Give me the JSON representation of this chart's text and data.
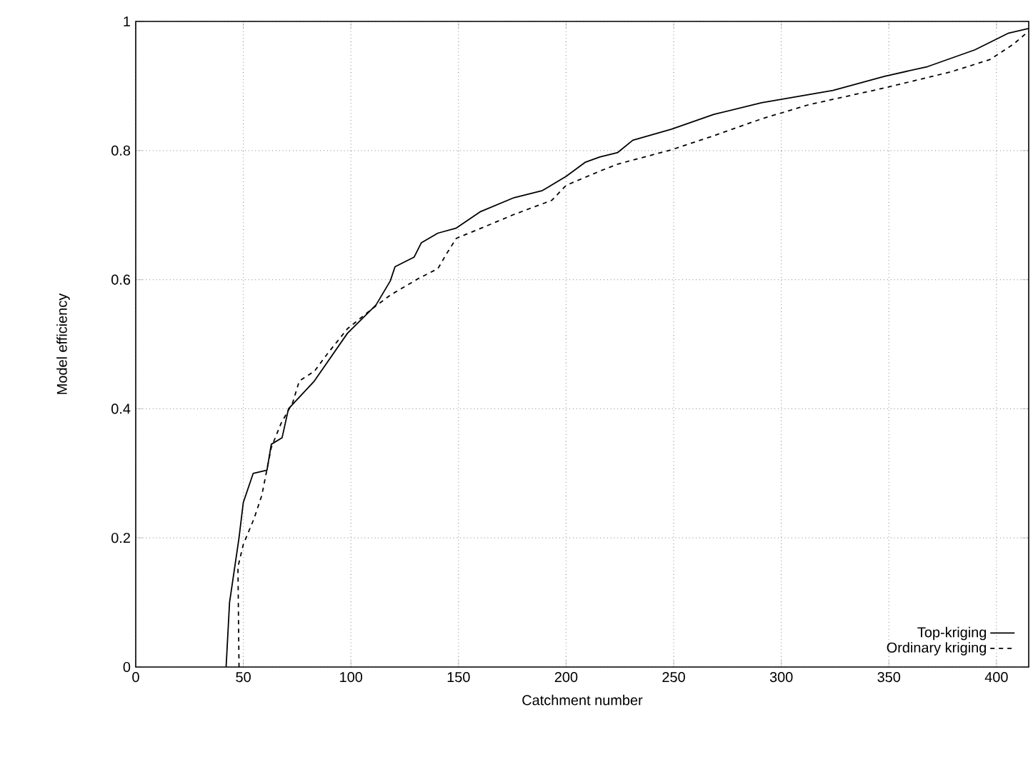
{
  "chart_data": {
    "type": "line",
    "xlabel": "Catchment number",
    "ylabel": "Model efficiency",
    "xlim": [
      0,
      415
    ],
    "ylim": [
      0,
      1
    ],
    "xticks": [
      0,
      50,
      100,
      150,
      200,
      250,
      300,
      350,
      400
    ],
    "yticks": [
      0,
      0.2,
      0.4,
      0.6,
      0.8,
      1
    ],
    "grid": true,
    "legend": "bottom right",
    "series": [
      {
        "name": "Top-kriging",
        "color": "#000000",
        "line_style": "solid",
        "x": [
          42,
          43.6,
          48,
          50,
          54.6,
          61,
          63,
          68,
          71,
          83,
          98.4,
          111.7,
          118.3,
          120.5,
          129.4,
          132.7,
          140.4,
          149,
          160,
          175.8,
          189,
          200,
          209,
          215.6,
          224,
          231,
          249,
          268.7,
          290.8,
          324,
          348,
          368,
          390,
          405.7,
          415
        ],
        "values": [
          0,
          0.1,
          0.2,
          0.255,
          0.3,
          0.305,
          0.345,
          0.355,
          0.4,
          0.443,
          0.517,
          0.561,
          0.598,
          0.62,
          0.635,
          0.657,
          0.672,
          0.68,
          0.705,
          0.727,
          0.738,
          0.76,
          0.782,
          0.79,
          0.797,
          0.816,
          0.833,
          0.856,
          0.874,
          0.893,
          0.915,
          0.93,
          0.956,
          0.982,
          0.989
        ]
      },
      {
        "name": "Ordinary kriging",
        "color": "#000000",
        "line_style": "dashed",
        "x": [
          48,
          47.5,
          50,
          55,
          58.6,
          63,
          67.5,
          73,
          76,
          83,
          89.5,
          98.4,
          109.5,
          118.3,
          131.5,
          140.4,
          144.8,
          149,
          160,
          175.8,
          193.4,
          200,
          215.6,
          224,
          248.8,
          268.7,
          290.8,
          312.8,
          348,
          379,
          397,
          408,
          415
        ],
        "values": [
          0,
          0.155,
          0.19,
          0.23,
          0.266,
          0.34,
          0.377,
          0.41,
          0.443,
          0.458,
          0.487,
          0.524,
          0.554,
          0.576,
          0.602,
          0.617,
          0.642,
          0.664,
          0.679,
          0.701,
          0.723,
          0.746,
          0.768,
          0.779,
          0.801,
          0.823,
          0.849,
          0.871,
          0.897,
          0.922,
          0.941,
          0.965,
          0.985
        ]
      }
    ]
  }
}
